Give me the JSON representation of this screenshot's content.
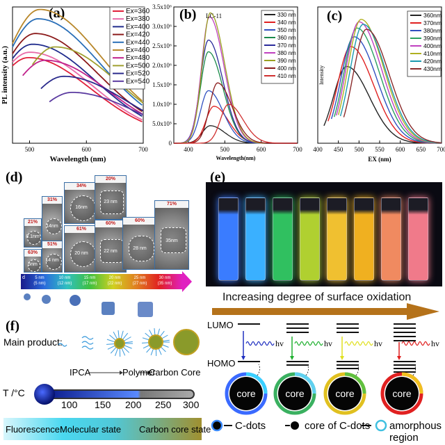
{
  "panel_labels": {
    "a": "(a)",
    "b": "(b)",
    "c": "(c)",
    "d": "(d)",
    "e": "(e)",
    "f": "(f)"
  },
  "chart_data": [
    {
      "type": "line",
      "panel": "(a)",
      "xlabel": "Wavelength (nm)",
      "ylabel": "PL intensity (a.u.)",
      "xlim": [
        470,
        700
      ],
      "xticks": [
        500,
        600,
        700
      ],
      "grid": false,
      "legend_placement": "top-right",
      "series": [
        {
          "name": "Ex=360",
          "color": "#e0203a",
          "peak_x": 498,
          "peak_y": 0.64
        },
        {
          "name": "Ex=380",
          "color": "#e86aa8",
          "peak_x": 500,
          "peak_y": 0.68
        },
        {
          "name": "Ex=400",
          "color": "#1f2b8c",
          "peak_x": 505,
          "peak_y": 0.74
        },
        {
          "name": "Ex=420",
          "color": "#8b1a1a",
          "peak_x": 510,
          "peak_y": 0.82
        },
        {
          "name": "Ex=440",
          "color": "#2a6fb8",
          "peak_x": 515,
          "peak_y": 0.93
        },
        {
          "name": "Ex=460",
          "color": "#b8872a",
          "peak_x": 518,
          "peak_y": 1.0
        },
        {
          "name": "Ex=480",
          "color": "#c0208a",
          "peak_x": 528,
          "peak_y": 0.62
        },
        {
          "name": "Ex=500",
          "color": "#a0a030",
          "peak_x": 545,
          "peak_y": 0.72
        },
        {
          "name": "Ex=520",
          "color": "#2a2a8c",
          "peak_x": 560,
          "peak_y": 0.5
        },
        {
          "name": "Ex=540",
          "color": "#5a3aa0",
          "peak_x": 575,
          "peak_y": 0.38
        }
      ]
    },
    {
      "type": "line",
      "panel": "(b)",
      "title": "LC-11",
      "xlabel": "Wavelength(nm)",
      "ylabel": "",
      "xlim": [
        360,
        700
      ],
      "ylim": [
        0,
        3500000
      ],
      "xticks": [
        400,
        500,
        600,
        700
      ],
      "yticks": [
        "0",
        "5.0x10⁵",
        "1.0x10⁶",
        "1.5x10⁶",
        "2.0x10⁶",
        "2.5x10⁶",
        "3.0x10⁶",
        "3.5x10⁶"
      ],
      "legend_placement": "top-right",
      "series": [
        {
          "name": "330 nm",
          "color": "#222222",
          "peak_x": 460,
          "peak_y": 450000
        },
        {
          "name": "340 nm",
          "color": "#e02020",
          "peak_x": 470,
          "peak_y": 950000
        },
        {
          "name": "350 nm",
          "color": "#3050c0",
          "peak_x": 455,
          "peak_y": 1350000
        },
        {
          "name": "360 nm",
          "color": "#1a8a4a",
          "peak_x": 455,
          "peak_y": 2350000
        },
        {
          "name": "370 nm",
          "color": "#2a2a9a",
          "peak_x": 455,
          "peak_y": 2650000
        },
        {
          "name": "380 nm",
          "color": "#c040c0",
          "peak_x": 458,
          "peak_y": 3250000
        },
        {
          "name": "390 nm",
          "color": "#9aa020",
          "peak_x": 460,
          "peak_y": 3350000
        },
        {
          "name": "400 nm",
          "color": "#8a1a1a",
          "peak_x": 480,
          "peak_y": 1550000
        },
        {
          "name": "410 nm",
          "color": "#d03030",
          "peak_x": 510,
          "peak_y": 1000000
        }
      ]
    },
    {
      "type": "line",
      "panel": "(c)",
      "xlabel": "EX (nm)",
      "ylabel": "Intensity",
      "xlim": [
        400,
        700
      ],
      "xticks": [
        400,
        450,
        500,
        550,
        600,
        650,
        700
      ],
      "legend_placement": "top-right",
      "series": [
        {
          "name": "360nm",
          "color": "#222222",
          "peak_x": 470,
          "peak_y": 0.62
        },
        {
          "name": "370nm",
          "color": "#e02020",
          "peak_x": 480,
          "peak_y": 0.78
        },
        {
          "name": "380nm",
          "color": "#3050c0",
          "peak_x": 488,
          "peak_y": 0.86
        },
        {
          "name": "390nm",
          "color": "#2aa060",
          "peak_x": 495,
          "peak_y": 0.93
        },
        {
          "name": "400nm",
          "color": "#c040c0",
          "peak_x": 500,
          "peak_y": 0.98
        },
        {
          "name": "410nm",
          "color": "#b0b020",
          "peak_x": 505,
          "peak_y": 1.0
        },
        {
          "name": "420nm",
          "color": "#1a9ab0",
          "peak_x": 510,
          "peak_y": 0.96
        },
        {
          "name": "430nm",
          "color": "#8a2a2a",
          "peak_x": 518,
          "peak_y": 0.92
        }
      ]
    }
  ],
  "panel_d": {
    "percentages": [
      "21%",
      "63%",
      "31%",
      "51%",
      "34%",
      "61%",
      "20%",
      "60%",
      "60%",
      "71%"
    ],
    "sizes": [
      "8.1nm",
      "5nm",
      "14nm",
      "14 nm",
      "16nm",
      "20 nm",
      "23 nm",
      "22 nm",
      "28 nm",
      "35nm"
    ],
    "scale_labels": [
      [
        "5 nm",
        "(5 nm)"
      ],
      [
        "10 nm",
        "(12 nm)"
      ],
      [
        "15 nm",
        "(17 nm)"
      ],
      [
        "20 nm",
        "(22 nm)"
      ],
      [
        "25 nm",
        "(27 nm)"
      ],
      [
        "30 nm",
        "(35 nm)"
      ]
    ],
    "scale_start": "d"
  },
  "panel_e": {
    "vials": [
      "#3a7cff",
      "#3ab0ff",
      "#30c060",
      "#b0d030",
      "#f0c030",
      "#f0b020",
      "#f08a60",
      "#f07a8a"
    ],
    "caption": "Increasing degree of surface oxidation"
  },
  "panel_f": {
    "main_product_label": "Main product:",
    "path": [
      "IPCA",
      "Polymer",
      "Carbon Core"
    ],
    "temp_label": "T /°C",
    "temps": [
      "100",
      "150",
      "200",
      "250",
      "300"
    ],
    "fluor_label": "Fluorescence:",
    "fluor_states": [
      "Molecular state",
      "Carbon core state"
    ]
  },
  "energy": {
    "lumo": "LUMO",
    "homo": "HOMO",
    "hv": "hv",
    "core": "core",
    "arrow_colors": [
      "#2030c0",
      "#20b030",
      "#e0e020",
      "#e02020"
    ],
    "legend": [
      "C-dots",
      "core of C-dots",
      "amorphous region"
    ]
  }
}
